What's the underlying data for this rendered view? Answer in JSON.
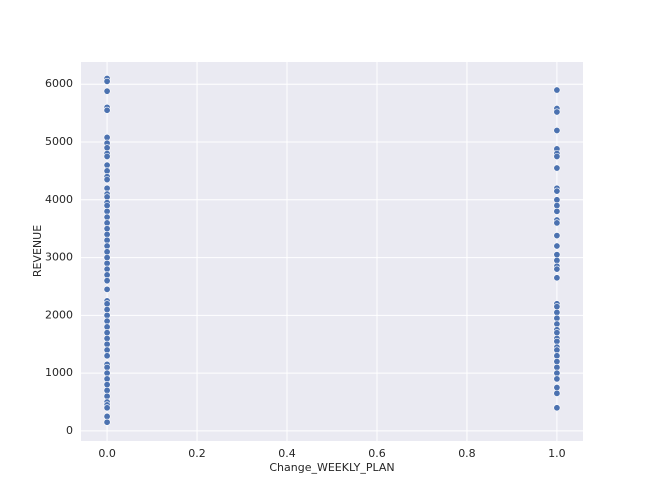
{
  "chart_data": {
    "type": "scatter",
    "xlabel": "Change_WEEKLY_PLAN",
    "ylabel": "REVENUE",
    "color": "#4c72b0",
    "grid": true,
    "xlim": [
      -0.058,
      1.058
    ],
    "ylim": [
      -175,
      6385
    ],
    "xticks": [
      {
        "value": 0,
        "label": "0.0"
      },
      0.2,
      0.4,
      0.6,
      0.8,
      {
        "value": 1,
        "label": "1.0"
      }
    ],
    "yticks": [
      0,
      1000,
      2000,
      3000,
      4000,
      5000,
      6000
    ],
    "x": [
      0,
      0,
      0,
      0,
      0,
      0,
      0,
      0,
      0,
      0,
      0,
      0,
      0,
      0,
      0,
      0,
      0,
      0,
      0,
      0,
      0,
      0,
      0,
      0,
      0,
      0,
      0,
      0,
      0,
      0,
      0,
      0,
      0,
      0,
      0,
      0,
      0,
      0,
      0,
      0,
      0,
      0,
      0,
      0,
      0,
      0,
      0,
      0,
      0,
      0,
      0,
      0,
      0,
      0,
      0,
      0,
      1,
      1,
      1,
      1,
      1,
      1,
      1,
      1,
      1,
      1,
      1,
      1,
      1,
      1,
      1,
      1,
      1,
      1,
      1,
      1,
      1,
      1,
      1,
      1,
      1,
      1,
      1,
      1,
      1,
      1,
      1,
      1,
      1,
      1,
      1,
      1,
      1,
      1,
      1,
      1,
      1
    ],
    "values": [
      6100,
      6050,
      5880,
      5600,
      5550,
      5080,
      4980,
      4900,
      4800,
      4750,
      4600,
      4500,
      4400,
      4350,
      4200,
      4100,
      4050,
      3950,
      3900,
      3800,
      3700,
      3600,
      3500,
      3400,
      3300,
      3200,
      3100,
      3000,
      2900,
      2800,
      2700,
      2600,
      2450,
      2250,
      2200,
      2100,
      2000,
      1900,
      1800,
      1700,
      1600,
      1500,
      1400,
      1300,
      1150,
      1100,
      1000,
      900,
      800,
      700,
      600,
      500,
      450,
      400,
      250,
      150,
      5900,
      5580,
      5520,
      5200,
      4880,
      4800,
      4750,
      4550,
      4200,
      4150,
      4000,
      3900,
      3800,
      3650,
      3600,
      3380,
      3200,
      3050,
      2950,
      2850,
      2800,
      2650,
      2200,
      2150,
      2050,
      1950,
      1850,
      1750,
      1700,
      1600,
      1550,
      1450,
      1400,
      1300,
      1200,
      1100,
      1000,
      900,
      750,
      650,
      400
    ]
  }
}
